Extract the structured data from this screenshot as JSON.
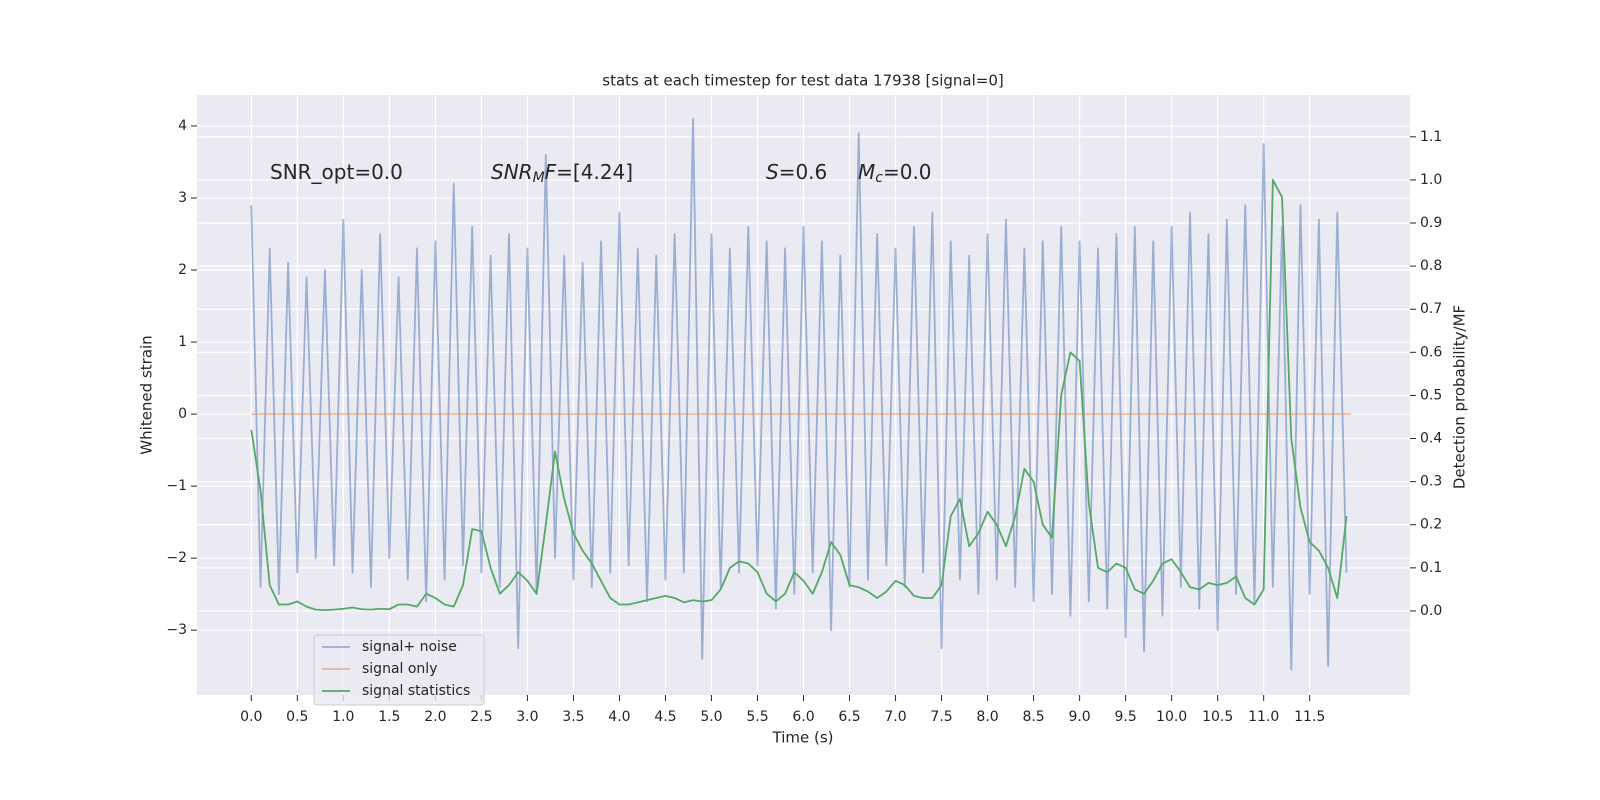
{
  "chart_data": {
    "type": "line",
    "title": "stats at each timestep for test data 17938 [signal=0]",
    "xlabel": "Time (s)",
    "ylabel": "Whitened strain",
    "y2label": "Detection probability/MF",
    "xlim": [
      -0.59,
      12.59
    ],
    "ylim": [
      -3.9,
      4.43
    ],
    "y2lim": [
      -0.195,
      1.197
    ],
    "xticks": [
      {
        "value": 0,
        "label": "0.0"
      },
      0.5,
      {
        "value": 1,
        "label": "1.0"
      },
      1.5,
      {
        "value": 2,
        "label": "2.0"
      },
      2.5,
      {
        "value": 3,
        "label": "3.0"
      },
      3.5,
      {
        "value": 4,
        "label": "4.0"
      },
      4.5,
      {
        "value": 5,
        "label": "5.0"
      },
      5.5,
      {
        "value": 6,
        "label": "6.0"
      },
      6.5,
      {
        "value": 7,
        "label": "7.0"
      },
      7.5,
      {
        "value": 8,
        "label": "8.0"
      },
      8.5,
      {
        "value": 9,
        "label": "9.0"
      },
      9.5,
      {
        "value": 10,
        "label": "10.0"
      },
      10.5,
      {
        "value": 11,
        "label": "11.0"
      },
      11.5
    ],
    "yticks": [
      {
        "value": -3,
        "label": "−3"
      },
      {
        "value": -2,
        "label": "−2"
      },
      {
        "value": -1,
        "label": "−1"
      },
      0,
      1,
      2,
      3,
      4
    ],
    "y2ticks": [
      {
        "value": 0,
        "label": "0.0"
      },
      0.1,
      0.2,
      0.3,
      0.4,
      0.5,
      0.6,
      0.7,
      0.8,
      0.9,
      {
        "value": 1,
        "label": "1.0"
      },
      1.1
    ],
    "grid": true,
    "legend": "lower left",
    "annotations": [
      {
        "parts": [
          {
            "text": "SNR_opt=0.0"
          }
        ]
      },
      {
        "parts": [
          {
            "text": "SNR",
            "style": "italic"
          },
          {
            "text": "M",
            "style": "sub"
          },
          {
            "text": "F",
            "style": "italic"
          },
          {
            "text": "=[4.24]"
          }
        ]
      },
      {
        "parts": [
          {
            "text": "S",
            "style": "italic"
          },
          {
            "text": "=0.6"
          }
        ]
      },
      {
        "parts": [
          {
            "text": "M",
            "style": "italic"
          },
          {
            "text": "c",
            "style": "sub"
          },
          {
            "text": "=0.0"
          }
        ]
      }
    ],
    "x": [
      0,
      0.1,
      0.2,
      0.3,
      0.4,
      0.5,
      0.6,
      0.7,
      0.8,
      0.9,
      1,
      1.1,
      1.2,
      1.3,
      1.4,
      1.5,
      1.6,
      1.7,
      1.8,
      1.9,
      2,
      2.1,
      2.2,
      2.3,
      2.4,
      2.5,
      2.6,
      2.7,
      2.8,
      2.9,
      3,
      3.1,
      3.2,
      3.3,
      3.4,
      3.5,
      3.6,
      3.7,
      3.8,
      3.9,
      4,
      4.1,
      4.2,
      4.3,
      4.4,
      4.5,
      4.6,
      4.7,
      4.8,
      4.9,
      5,
      5.1,
      5.2,
      5.3,
      5.4,
      5.5,
      5.6,
      5.7,
      5.8,
      5.9,
      6,
      6.1,
      6.2,
      6.3,
      6.4,
      6.5,
      6.6,
      6.7,
      6.8,
      6.9,
      7,
      7.1,
      7.2,
      7.3,
      7.4,
      7.5,
      7.6,
      7.7,
      7.8,
      7.9,
      8,
      8.1,
      8.2,
      8.3,
      8.4,
      8.5,
      8.6,
      8.7,
      8.8,
      8.9,
      9,
      9.1,
      9.2,
      9.3,
      9.4,
      9.5,
      9.6,
      9.7,
      9.8,
      9.9,
      10,
      10.1,
      10.2,
      10.3,
      10.4,
      10.5,
      10.6,
      10.7,
      10.8,
      10.9,
      11,
      11.1,
      11.2,
      11.3,
      11.4,
      11.5,
      11.6,
      11.7,
      11.8,
      11.9
    ],
    "series": [
      {
        "name": "signal+ noise",
        "color": "#4c72b0",
        "alpha": 0.5,
        "values": [
          2.9,
          -2.4,
          2.3,
          -2.5,
          2.1,
          -2.2,
          1.9,
          -2.0,
          2.0,
          -2.1,
          2.7,
          -2.2,
          2.0,
          -2.4,
          2.5,
          -2.0,
          1.9,
          -2.3,
          2.3,
          -2.6,
          2.4,
          -2.3,
          3.2,
          -2.1,
          2.6,
          -2.2,
          2.2,
          -2.4,
          2.5,
          -3.25,
          2.3,
          -2.5,
          3.6,
          -2.0,
          2.2,
          -2.3,
          2.1,
          -2.4,
          2.4,
          -2.2,
          2.8,
          -2.1,
          2.3,
          -2.6,
          2.2,
          -2.3,
          2.5,
          -2.2,
          4.1,
          -3.4,
          2.5,
          -2.4,
          2.3,
          -2.2,
          2.6,
          -2.1,
          2.4,
          -2.7,
          2.3,
          -2.5,
          2.6,
          -2.2,
          2.4,
          -3.0,
          2.2,
          -2.4,
          3.9,
          -2.3,
          2.5,
          -2.1,
          2.3,
          -2.4,
          2.6,
          -2.2,
          2.8,
          -3.25,
          2.4,
          -2.3,
          2.2,
          -2.5,
          2.5,
          -2.3,
          2.7,
          -2.4,
          2.3,
          -2.6,
          2.4,
          -2.5,
          2.6,
          -2.8,
          2.4,
          -2.6,
          2.3,
          -2.7,
          2.5,
          -3.1,
          2.6,
          -3.3,
          2.4,
          -2.8,
          2.6,
          -2.4,
          2.8,
          -2.7,
          2.5,
          -3.0,
          2.7,
          -2.5,
          2.9,
          -2.6,
          3.75,
          -2.4,
          2.6,
          -3.55,
          2.9,
          -2.5,
          2.7,
          -3.5,
          2.8,
          -2.2
        ]
      },
      {
        "name": "signal only",
        "color": "#dd8452",
        "alpha": 0.5,
        "x": [
          0,
          11.95
        ],
        "values": [
          0,
          0
        ]
      },
      {
        "name": "signal statistics",
        "color": "#55a868",
        "axis": "y2",
        "values": [
          0.42,
          0.28,
          0.06,
          0.015,
          0.015,
          0.022,
          0.01,
          0.003,
          0.002,
          0.003,
          0.005,
          0.008,
          0.004,
          0.003,
          0.005,
          0.004,
          0.015,
          0.015,
          0.01,
          0.04,
          0.03,
          0.015,
          0.01,
          0.06,
          0.19,
          0.185,
          0.1,
          0.04,
          0.06,
          0.09,
          0.07,
          0.04,
          0.2,
          0.37,
          0.26,
          0.18,
          0.14,
          0.11,
          0.07,
          0.03,
          0.015,
          0.015,
          0.02,
          0.025,
          0.03,
          0.035,
          0.03,
          0.02,
          0.025,
          0.022,
          0.025,
          0.05,
          0.1,
          0.115,
          0.11,
          0.09,
          0.04,
          0.022,
          0.04,
          0.09,
          0.07,
          0.04,
          0.09,
          0.16,
          0.13,
          0.06,
          0.055,
          0.045,
          0.03,
          0.045,
          0.07,
          0.06,
          0.035,
          0.03,
          0.03,
          0.06,
          0.22,
          0.26,
          0.15,
          0.18,
          0.23,
          0.2,
          0.15,
          0.22,
          0.33,
          0.3,
          0.2,
          0.17,
          0.5,
          0.6,
          0.58,
          0.25,
          0.1,
          0.09,
          0.11,
          0.1,
          0.05,
          0.04,
          0.07,
          0.11,
          0.12,
          0.09,
          0.055,
          0.05,
          0.065,
          0.06,
          0.065,
          0.08,
          0.03,
          0.015,
          0.05,
          1.0,
          0.96,
          0.4,
          0.24,
          0.16,
          0.14,
          0.1,
          0.03,
          0.22
        ]
      }
    ]
  }
}
